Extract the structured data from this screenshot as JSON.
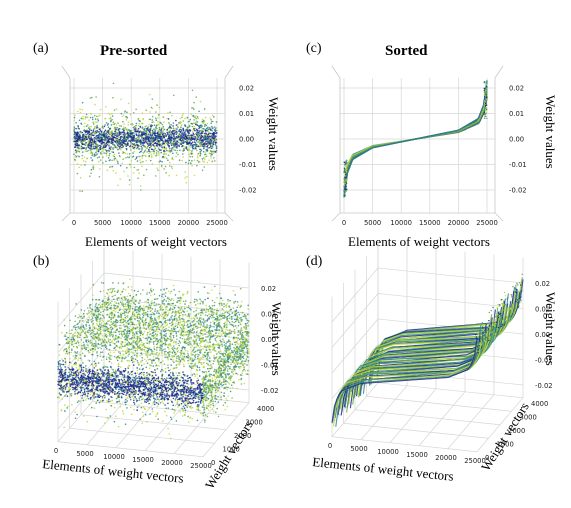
{
  "figure": {
    "panel_letters": [
      "(a)",
      "(b)",
      "(c)",
      "(d)"
    ],
    "titles": {
      "left": "Pre-sorted",
      "right": "Sorted"
    }
  },
  "colors": {
    "dark": "#1f2a8a",
    "mid": "#2b8a8e",
    "light": "#bcd83a",
    "green": "#6aa84f"
  },
  "chart_data": [
    {
      "panel": "(a)",
      "type": "scatter",
      "title": "Pre-sorted",
      "xlabel": "Elements of weight vectors",
      "zlabel": "Weight values",
      "xticks": [
        "0",
        "5000",
        "10000",
        "15000",
        "20000",
        "25000"
      ],
      "zticks": [
        "0.02",
        "0.01",
        "0.00",
        "-0.01",
        "-0.02"
      ],
      "xlim": [
        0,
        25000
      ],
      "zlim": [
        -0.025,
        0.025
      ],
      "view": "front",
      "description": "unsorted weights, noise band around 0"
    },
    {
      "panel": "(b)",
      "type": "scatter",
      "title": "",
      "xlabel": "Elements of weight vectors",
      "ylabel": "Weight vectors",
      "zlabel": "Weight values",
      "xticks": [
        "0",
        "5000",
        "10000",
        "15000",
        "20000",
        "25000"
      ],
      "yticks": [
        "0",
        "1000",
        "2000",
        "3000",
        "4000"
      ],
      "zticks": [
        "0.02",
        "0.01",
        "0.00",
        "-0.01",
        "-0.02"
      ],
      "xlim": [
        0,
        25000
      ],
      "ylim": [
        0,
        4000
      ],
      "zlim": [
        -0.025,
        0.025
      ],
      "view": "3d"
    },
    {
      "panel": "(c)",
      "type": "line",
      "title": "Sorted",
      "xlabel": "Elements of weight vectors",
      "zlabel": "Weight values",
      "xticks": [
        "0",
        "5000",
        "10000",
        "15000",
        "20000",
        "25000"
      ],
      "zticks": [
        "0.02",
        "0.01",
        "0.00",
        "-0.01",
        "-0.02"
      ],
      "xlim": [
        0,
        25000
      ],
      "zlim": [
        -0.025,
        0.025
      ],
      "view": "front",
      "curve": {
        "x": [
          0,
          500,
          1500,
          5000,
          12500,
          20000,
          23500,
          24500,
          25000
        ],
        "y": [
          -0.02,
          -0.012,
          -0.007,
          -0.003,
          0.0,
          0.003,
          0.007,
          0.012,
          0.02
        ]
      }
    },
    {
      "panel": "(d)",
      "type": "line",
      "title": "",
      "xlabel": "Elements of weight vectors",
      "ylabel": "Weight vectors",
      "zlabel": "Weight values",
      "xticks": [
        "0",
        "5000",
        "10000",
        "15000",
        "20000",
        "25000"
      ],
      "yticks": [
        "0",
        "1000",
        "2000",
        "3000",
        "4000"
      ],
      "zticks": [
        "0.02",
        "0.01",
        "0.00",
        "-0.01",
        "-0.02"
      ],
      "xlim": [
        0,
        25000
      ],
      "ylim": [
        0,
        4000
      ],
      "zlim": [
        -0.025,
        0.025
      ],
      "view": "3d"
    }
  ]
}
